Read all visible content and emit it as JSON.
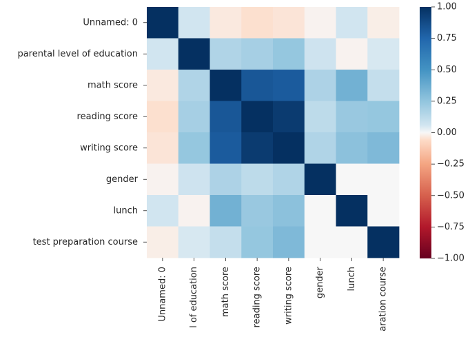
{
  "chart_data": {
    "type": "heatmap",
    "title": "",
    "xlabel": "",
    "ylabel": "",
    "row_labels": [
      "Unnamed: 0",
      "parental level of education",
      "math score",
      "reading score",
      "writing score",
      "gender",
      "lunch",
      "test preparation course"
    ],
    "col_labels": [
      "Unnamed: 0",
      "l of education",
      "math score",
      "reading score",
      "writing score",
      "gender",
      "lunch",
      "aration course"
    ],
    "values": [
      [
        1.0,
        0.06,
        -0.03,
        -0.05,
        -0.04,
        -0.01,
        0.06,
        -0.02
      ],
      [
        0.06,
        1.0,
        0.16,
        0.19,
        0.24,
        0.07,
        -0.01,
        0.05
      ],
      [
        -0.03,
        0.16,
        1.0,
        0.82,
        0.8,
        0.17,
        0.35,
        0.1
      ],
      [
        -0.05,
        0.19,
        0.82,
        1.0,
        0.95,
        0.12,
        0.23,
        0.24
      ],
      [
        -0.04,
        0.24,
        0.8,
        0.95,
        1.0,
        0.16,
        0.27,
        0.31
      ],
      [
        -0.01,
        0.07,
        0.17,
        0.12,
        0.16,
        1.0,
        0.0,
        0.0
      ],
      [
        0.06,
        -0.01,
        0.35,
        0.23,
        0.27,
        0.0,
        1.0,
        0.0
      ],
      [
        -0.02,
        0.05,
        0.1,
        0.24,
        0.31,
        0.0,
        0.0,
        1.0
      ]
    ],
    "vmin": -1.0,
    "vmax": 1.0,
    "colormap": "RdBu_r",
    "colorbar_ticks": [
      "1.00",
      "0.75",
      "0.50",
      "0.25",
      "0.00",
      "−0.25",
      "−0.50",
      "−0.75",
      "−1.00"
    ],
    "colorbar_values": [
      1.0,
      0.75,
      0.5,
      0.25,
      0.0,
      -0.25,
      -0.5,
      -0.75,
      -1.0
    ],
    "grid": false,
    "colorbar_position": "right"
  }
}
